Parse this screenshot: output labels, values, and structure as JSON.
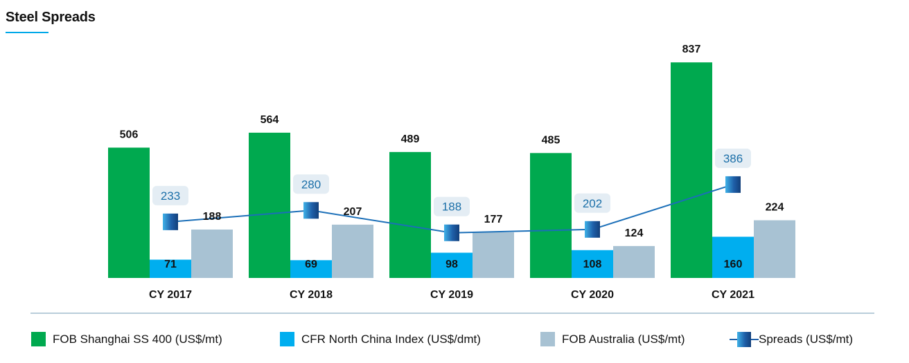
{
  "title": "Steel Spreads",
  "colors": {
    "fob_shanghai": "#00a94f",
    "cfr_north_china": "#00aeef",
    "fob_australia": "#a8c2d3",
    "spreads_line": "#1b6fb8",
    "spread_box_bg": "#e4edf4",
    "axis": "#b9cdda"
  },
  "chart_data": {
    "type": "bar",
    "categories": [
      "CY 2017",
      "CY 2018",
      "CY 2019",
      "CY 2020",
      "CY 2021"
    ],
    "series": [
      {
        "name": "FOB Shanghai SS 400 (US$/mt)",
        "type": "bar",
        "values": [
          506,
          564,
          489,
          485,
          837
        ]
      },
      {
        "name": "CFR North China Index (US$/dmt)",
        "type": "bar",
        "values": [
          71,
          69,
          98,
          108,
          160
        ]
      },
      {
        "name": "FOB Australia (US$/mt)",
        "type": "bar",
        "values": [
          188,
          207,
          177,
          124,
          224
        ]
      },
      {
        "name": "Spreads (US$/mt)",
        "type": "line",
        "values": [
          233,
          280,
          188,
          202,
          386
        ]
      }
    ],
    "ylim": [
      0,
      900
    ],
    "grid": false,
    "legend_position": "bottom"
  },
  "legend": [
    {
      "label": "FOB Shanghai SS 400 (US$/mt)",
      "icon": "green-square"
    },
    {
      "label": "CFR North China Index (US$/dmt)",
      "icon": "blue-square"
    },
    {
      "label": "FOB Australia (US$/mt)",
      "icon": "grey-square"
    },
    {
      "label": "Spreads (US$/mt)",
      "icon": "line-marker"
    }
  ]
}
